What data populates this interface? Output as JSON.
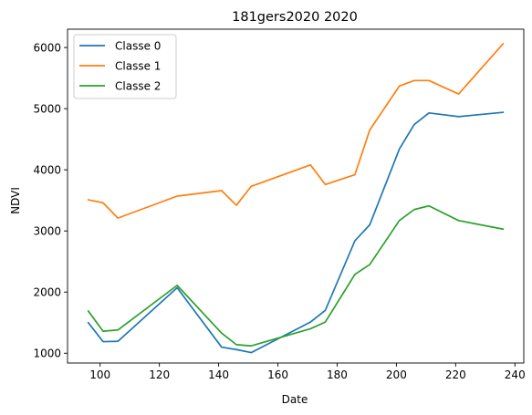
{
  "chart_data": {
    "type": "line",
    "title": "181gers2020 2020",
    "xlabel": "Date",
    "ylabel": "NDVI",
    "xlim": [
      89,
      243
    ],
    "ylim": [
      840,
      6300
    ],
    "xticks": [
      100,
      120,
      140,
      160,
      180,
      200,
      220,
      240
    ],
    "yticks": [
      1000,
      2000,
      3000,
      4000,
      5000,
      6000
    ],
    "grid": false,
    "legend_position": "top-left",
    "series": [
      {
        "name": "Classe 0",
        "color": "#1f77b4",
        "x": [
          96,
          101,
          106,
          126,
          141,
          146,
          151,
          171,
          176,
          186,
          191,
          201,
          206,
          211,
          221,
          236
        ],
        "y": [
          1500,
          1190,
          1195,
          2070,
          1100,
          1060,
          1010,
          1510,
          1700,
          2840,
          3100,
          4340,
          4740,
          4930,
          4870,
          4940
        ]
      },
      {
        "name": "Classe 1",
        "color": "#ff7f0e",
        "x": [
          96,
          101,
          106,
          126,
          141,
          146,
          151,
          171,
          176,
          186,
          191,
          201,
          206,
          211,
          221,
          236
        ],
        "y": [
          3510,
          3460,
          3210,
          3570,
          3660,
          3420,
          3730,
          4080,
          3760,
          3920,
          4650,
          5370,
          5460,
          5460,
          5240,
          6060
        ]
      },
      {
        "name": "Classe 2",
        "color": "#2ca02c",
        "x": [
          96,
          101,
          106,
          126,
          141,
          146,
          151,
          171,
          176,
          186,
          191,
          201,
          206,
          211,
          221,
          236
        ],
        "y": [
          1690,
          1360,
          1380,
          2110,
          1330,
          1140,
          1120,
          1400,
          1510,
          2290,
          2450,
          3170,
          3350,
          3410,
          3170,
          3030
        ]
      }
    ]
  }
}
